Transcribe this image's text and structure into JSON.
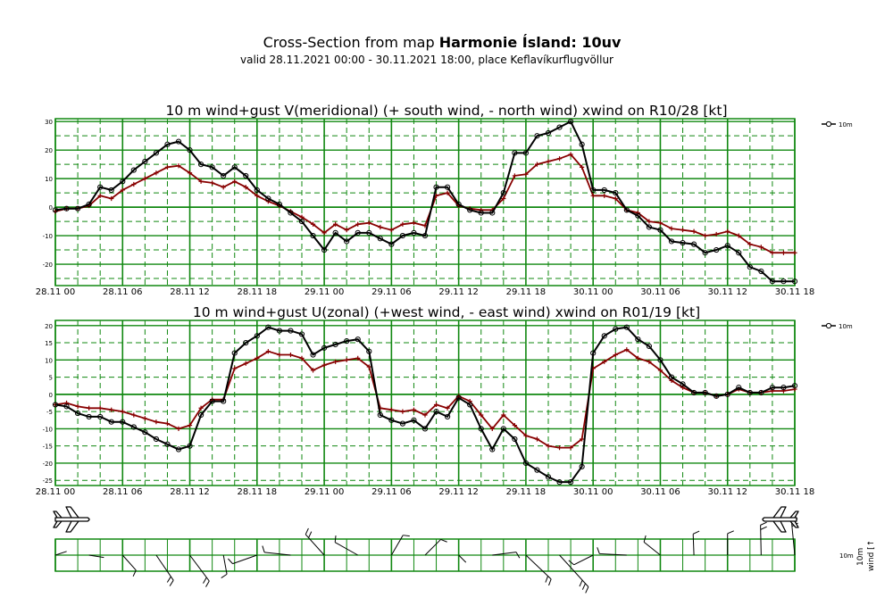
{
  "header": {
    "title_prefix": "Cross-Section from map ",
    "title_bold": "Harmonie Ísland: 10uv",
    "subtitle": "valid 28.11.2021 00:00 - 30.11.2021 18:00, place Keflavíkurflugvöllur"
  },
  "colors": {
    "grid": "#118811",
    "wind": "#000000",
    "gust": "#880000",
    "background": "#ffffff"
  },
  "chart_data": [
    {
      "type": "line",
      "title": "10 m wind+gust V(meridional) (+ south wind, - north wind) xwind on R10/28 [kt]",
      "x_tick_labels": [
        "28.11 00",
        "28.11 06",
        "28.11 12",
        "28.11 18",
        "29.11 00",
        "29.11 06",
        "29.11 12",
        "29.11 18",
        "30.11 00",
        "30.11 06",
        "30.11 12",
        "30.11 18"
      ],
      "x_tick_hours": [
        0,
        6,
        12,
        18,
        24,
        30,
        36,
        42,
        48,
        54,
        60,
        66
      ],
      "y_ticks": [
        30,
        20,
        10,
        0,
        -10,
        -20
      ],
      "ylim": [
        -27.5,
        31
      ],
      "xlim": [
        0,
        66
      ],
      "legend": {
        "label": "10m",
        "position": "top-right"
      },
      "grid": true,
      "x": [
        0,
        1,
        2,
        3,
        4,
        5,
        6,
        7,
        8,
        9,
        10,
        11,
        12,
        13,
        14,
        15,
        16,
        17,
        18,
        19,
        20,
        21,
        22,
        23,
        24,
        25,
        26,
        27,
        28,
        29,
        30,
        31,
        32,
        33,
        34,
        35,
        36,
        37,
        38,
        39,
        40,
        41,
        42,
        43,
        44,
        45,
        46,
        47,
        48,
        49,
        50,
        51,
        52,
        53,
        54,
        55,
        56,
        57,
        58,
        59,
        60,
        61,
        62,
        63,
        64,
        65,
        66
      ],
      "series": [
        {
          "name": "10m",
          "role": "wind",
          "marker": "circle",
          "values": [
            -1,
            -0.5,
            -0.5,
            1,
            7,
            6,
            9,
            13,
            16,
            19,
            22,
            23,
            20,
            15,
            14,
            11,
            14,
            11,
            6,
            3,
            1,
            -2,
            -5,
            -10,
            -15,
            -9,
            -12,
            -9,
            -9,
            -11,
            -13,
            -10,
            -9,
            -10,
            7,
            7,
            1,
            -1,
            -2,
            -2,
            5,
            19,
            19,
            25,
            26,
            28,
            30,
            22,
            6,
            6,
            5,
            -1,
            -3,
            -7,
            -8,
            -12,
            -12.5,
            -13,
            -16,
            -15,
            -13.5,
            -16,
            -21,
            -22.5,
            -26,
            -26,
            -26
          ]
        },
        {
          "name": "",
          "role": "gust",
          "marker": "plus",
          "values": [
            -1.5,
            -0.5,
            -0.5,
            0.5,
            4,
            3,
            6,
            8,
            10,
            12,
            14,
            14.5,
            12,
            9,
            8.5,
            7,
            9,
            7,
            4,
            2,
            0.5,
            -1.5,
            -3.5,
            -6,
            -9,
            -6,
            -8,
            -6,
            -5.5,
            -7,
            -8,
            -6,
            -5.5,
            -6.5,
            4,
            5,
            0.5,
            -0.5,
            -1,
            -1,
            3,
            11,
            11.5,
            15,
            16,
            17,
            18.5,
            14,
            4,
            4,
            3,
            -1,
            -2,
            -5,
            -5.5,
            -7.5,
            -8,
            -8.5,
            -10,
            -9.5,
            -8.5,
            -10,
            -13,
            -14,
            -16,
            -16,
            -16
          ]
        }
      ]
    },
    {
      "type": "line",
      "title": "10 m wind+gust U(zonal) (+west wind, - east wind) xwind on R01/19 [kt]",
      "x_tick_labels": [
        "28.11 00",
        "28.11 06",
        "28.11 12",
        "28.11 18",
        "29.11 00",
        "29.11 06",
        "29.11 12",
        "29.11 18",
        "30.11 00",
        "30.11 06",
        "30.11 12",
        "30.11 18"
      ],
      "x_tick_hours": [
        0,
        6,
        12,
        18,
        24,
        30,
        36,
        42,
        48,
        54,
        60,
        66
      ],
      "y_ticks": [
        20,
        15,
        10,
        5,
        0,
        -5,
        -10,
        -15,
        -20,
        -25
      ],
      "ylim": [
        -26.5,
        21.5
      ],
      "xlim": [
        0,
        66
      ],
      "legend": {
        "label": "10m",
        "position": "top-right"
      },
      "grid": true,
      "x": [
        0,
        1,
        2,
        3,
        4,
        5,
        6,
        7,
        8,
        9,
        10,
        11,
        12,
        13,
        14,
        15,
        16,
        17,
        18,
        19,
        20,
        21,
        22,
        23,
        24,
        25,
        26,
        27,
        28,
        29,
        30,
        31,
        32,
        33,
        34,
        35,
        36,
        37,
        38,
        39,
        40,
        41,
        42,
        43,
        44,
        45,
        46,
        47,
        48,
        49,
        50,
        51,
        52,
        53,
        54,
        55,
        56,
        57,
        58,
        59,
        60,
        61,
        62,
        63,
        64,
        65,
        66
      ],
      "series": [
        {
          "name": "10m",
          "role": "wind",
          "marker": "circle",
          "values": [
            -3,
            -3.5,
            -5.5,
            -6.5,
            -6.5,
            -8,
            -8,
            -9.5,
            -11,
            -13,
            -14.5,
            -16,
            -15,
            -6,
            -2,
            -2,
            12,
            15,
            17,
            19.5,
            18.5,
            18.5,
            17.5,
            11.5,
            13.5,
            14.5,
            15.5,
            16,
            12.5,
            -6,
            -7.5,
            -8.5,
            -7.5,
            -10,
            -5,
            -6.5,
            -1,
            -3,
            -10,
            -16,
            -10,
            -13,
            -20,
            -22,
            -24,
            -25.5,
            -25.5,
            -21,
            12,
            17,
            19,
            19.5,
            16,
            14,
            10,
            5,
            3,
            0.5,
            0.5,
            -0.5,
            0,
            2,
            0.5,
            0.5,
            2,
            2,
            2.5
          ]
        },
        {
          "name": "",
          "role": "gust",
          "marker": "plus",
          "values": [
            -3,
            -2.5,
            -3.5,
            -4,
            -4,
            -4.5,
            -5,
            -6,
            -7,
            -8,
            -8.5,
            -10,
            -9,
            -4,
            -1.5,
            -1.5,
            7.5,
            9,
            10.5,
            12.5,
            11.5,
            11.5,
            10.5,
            7,
            8.5,
            9.5,
            10,
            10.5,
            8,
            -4,
            -4.5,
            -5,
            -4.5,
            -6,
            -3,
            -4,
            -0.5,
            -2,
            -6,
            -10,
            -6,
            -9,
            -12,
            -13,
            -15,
            -15.5,
            -15.5,
            -13,
            7.5,
            9.5,
            11.5,
            13,
            10.5,
            9.5,
            7,
            4,
            2,
            0.5,
            0.5,
            -0.5,
            0,
            1.5,
            0.5,
            0.5,
            1,
            1,
            1.5
          ]
        }
      ]
    }
  ],
  "barb_strip": {
    "legend_label": "10m",
    "axis_label": "wind [↑",
    "rows": 2,
    "barb_count": 23
  }
}
